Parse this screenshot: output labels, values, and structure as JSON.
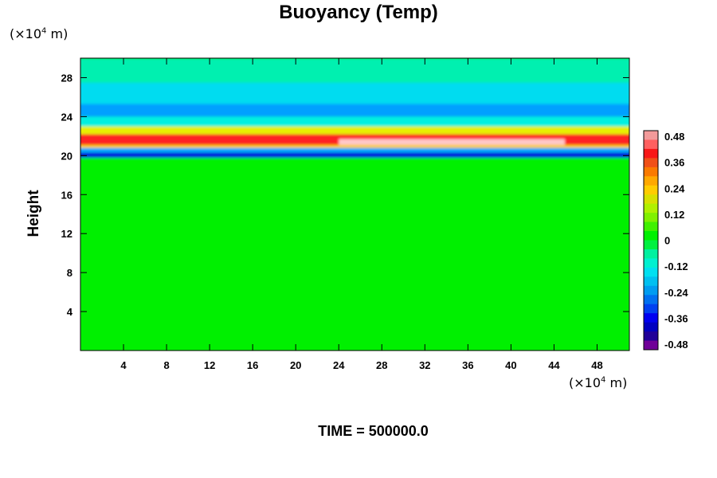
{
  "chart_data": {
    "type": "heatmap",
    "title": "Buoyancy (Temp)",
    "ylabel": "Height",
    "xlabel": "",
    "x_unit": {
      "prefix": "(×10",
      "exp": "4",
      "suffix": " m)"
    },
    "y_unit": {
      "prefix": "(×10",
      "exp": "4",
      "suffix": " m)"
    },
    "xlim": [
      0,
      51
    ],
    "ylim": [
      0,
      30
    ],
    "x_ticks": [
      4,
      8,
      12,
      16,
      20,
      24,
      28,
      32,
      36,
      40,
      44,
      48
    ],
    "y_ticks": [
      4,
      8,
      12,
      16,
      20,
      24,
      28
    ],
    "colorbar": {
      "min": -0.48,
      "max": 0.48,
      "labels": [
        "0.48",
        "0.36",
        "0.24",
        "0.12",
        "0",
        "-0.12",
        "-0.24",
        "-0.36",
        "-0.48"
      ],
      "colors": [
        "#f29a9a",
        "#ff6060",
        "#f81818",
        "#f05018",
        "#fa7a00",
        "#ffa800",
        "#ffcc00",
        "#d8e000",
        "#b0f000",
        "#80f000",
        "#40f000",
        "#00f000",
        "#00f040",
        "#00f0a0",
        "#00f0d0",
        "#00e0f0",
        "#00c0f0",
        "#009cf0",
        "#0070f0",
        "#0040f0",
        "#0000f0",
        "#0000c0",
        "#200098",
        "#700098"
      ]
    },
    "bands": [
      {
        "y_range": [
          0,
          19.8
        ],
        "value": 0.0,
        "description_color": "#00f000"
      },
      {
        "y_range": [
          19.8,
          20.3
        ],
        "value": -0.38,
        "description_color": "#0000e0"
      },
      {
        "y_range": [
          20.3,
          20.8
        ],
        "value": -0.2,
        "description_color": "#00a8ff"
      },
      {
        "y_range": [
          20.8,
          21.1
        ],
        "value": 0.2,
        "description_color": "#ffd000"
      },
      {
        "y_range": [
          21.1,
          22.2
        ],
        "value": 0.4,
        "description_color": "#ff2020"
      },
      {
        "y_range": [
          22.2,
          23.0
        ],
        "value": 0.15,
        "description_color": "#e8f000"
      },
      {
        "y_range": [
          23.0,
          24.0
        ],
        "value": -0.12,
        "description_color": "#00f0e0"
      },
      {
        "y_range": [
          24.0,
          25.3
        ],
        "value": -0.22,
        "description_color": "#00a0ff"
      },
      {
        "y_range": [
          25.3,
          27.5
        ],
        "value": -0.15,
        "description_color": "#00dcf0"
      },
      {
        "y_range": [
          27.5,
          30.0
        ],
        "value": -0.06,
        "description_color": "#00f0b0"
      }
    ]
  },
  "time_label": "TIME = 500000.0"
}
